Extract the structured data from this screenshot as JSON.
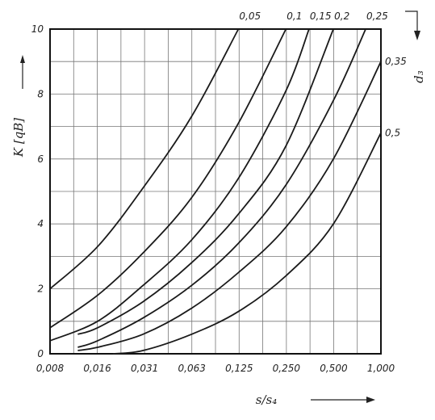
{
  "chart_data": {
    "type": "line",
    "title": "",
    "xlabel": "s/s₄",
    "ylabel": "K [qB]",
    "param_label": "d₃",
    "x_ticks": [
      "0,008",
      "0,016",
      "0,031",
      "0,063",
      "0,125",
      "0,250",
      "0,500",
      "1,000"
    ],
    "x_scale": "log2",
    "xlim": [
      0.008,
      1.0
    ],
    "y_ticks": [
      "0",
      "2",
      "4",
      "6",
      "8",
      "10"
    ],
    "ylim": [
      0,
      10
    ],
    "grid": true,
    "series": [
      {
        "name": "0,05",
        "x": [
          0.008,
          0.016,
          0.031,
          0.063,
          0.125
        ],
        "y": [
          2.0,
          3.3,
          5.1,
          7.3,
          10.0
        ]
      },
      {
        "name": "0,1",
        "x": [
          0.008,
          0.016,
          0.031,
          0.063,
          0.125,
          0.25
        ],
        "y": [
          0.8,
          1.8,
          3.1,
          4.8,
          7.1,
          10.0
        ]
      },
      {
        "name": "0,15",
        "x": [
          0.008,
          0.016,
          0.031,
          0.063,
          0.125,
          0.25,
          0.35
        ],
        "y": [
          0.4,
          1.0,
          2.1,
          3.5,
          5.4,
          8.1,
          10.0
        ]
      },
      {
        "name": "0,2",
        "x": [
          0.012,
          0.016,
          0.031,
          0.063,
          0.125,
          0.25,
          0.5
        ],
        "y": [
          0.6,
          0.8,
          1.6,
          2.8,
          4.3,
          6.4,
          10.0
        ]
      },
      {
        "name": "0,25",
        "x": [
          0.012,
          0.016,
          0.031,
          0.063,
          0.125,
          0.25,
          0.5,
          0.8
        ],
        "y": [
          0.2,
          0.4,
          1.1,
          2.1,
          3.4,
          5.2,
          7.8,
          10.0
        ]
      },
      {
        "name": "0,35",
        "x": [
          0.012,
          0.016,
          0.031,
          0.063,
          0.125,
          0.25,
          0.5,
          1.0
        ],
        "y": [
          0.1,
          0.2,
          0.6,
          1.4,
          2.5,
          3.9,
          6.0,
          9.0
        ]
      },
      {
        "name": "0,5",
        "x": [
          0.02,
          0.031,
          0.063,
          0.125,
          0.25,
          0.5,
          1.0
        ],
        "y": [
          0.0,
          0.1,
          0.6,
          1.3,
          2.4,
          4.0,
          6.8
        ]
      }
    ]
  }
}
